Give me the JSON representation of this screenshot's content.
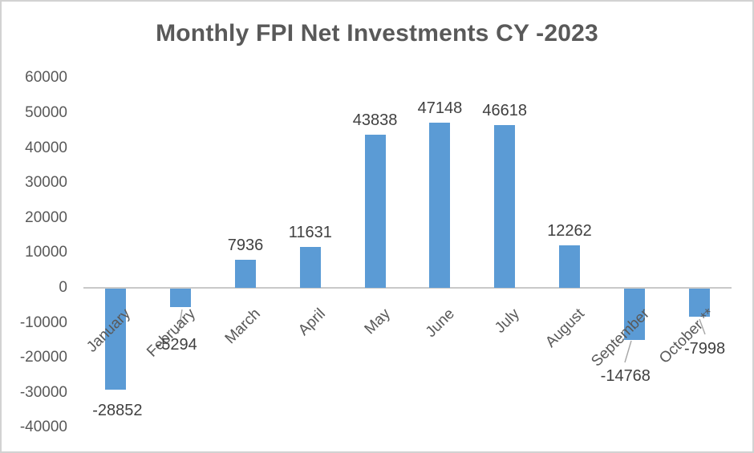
{
  "title": "Monthly FPI Net Investments CY -2023",
  "chart_data": {
    "type": "bar",
    "title": "Monthly FPI Net Investments CY -2023",
    "categories": [
      "January",
      "February",
      "March",
      "April",
      "May",
      "June",
      "July",
      "August",
      "September",
      "October **"
    ],
    "values": [
      -28852,
      -5294,
      7936,
      11631,
      43838,
      47148,
      46618,
      12262,
      -14768,
      -7998
    ],
    "data_labels": [
      "-28852",
      "-5294",
      "7936",
      "11631",
      "43838",
      "47148",
      "46618",
      "12262",
      "-14768",
      "-7998"
    ],
    "yticks": [
      60000,
      50000,
      40000,
      30000,
      20000,
      10000,
      0,
      -10000,
      -20000,
      -30000,
      -40000
    ],
    "ylim": [
      -40000,
      60000
    ],
    "xlabel": "",
    "ylabel": "",
    "grid": false,
    "legend": "none",
    "x_label_rotation_deg": 45
  },
  "colors": {
    "bar": "#5B9BD5",
    "title_text": "#595959",
    "axis_text": "#595959",
    "data_label_text": "#404040",
    "axis_line": "#C9C9C9",
    "leader_line": "#A6A6A6",
    "border": "#D2D2D2",
    "background": "#FFFFFF"
  }
}
